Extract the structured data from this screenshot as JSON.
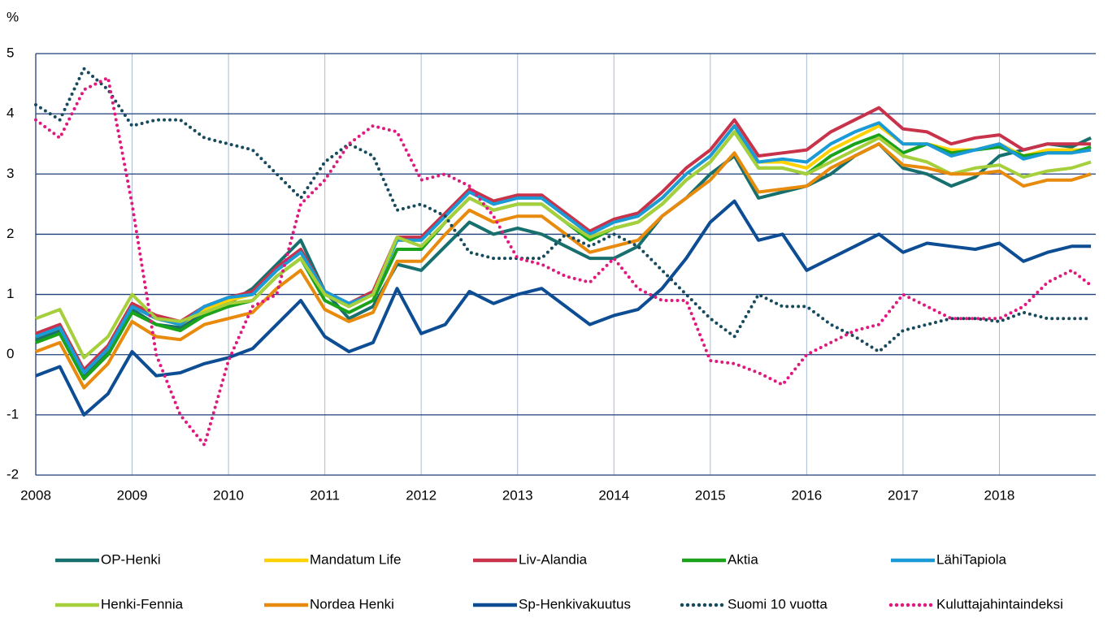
{
  "chart_data": {
    "type": "line",
    "y_label": "%",
    "x": [
      2008,
      2008.25,
      2008.5,
      2008.75,
      2009,
      2009.25,
      2009.5,
      2009.75,
      2010,
      2010.25,
      2010.5,
      2010.75,
      2011,
      2011.25,
      2011.5,
      2011.75,
      2012,
      2012.25,
      2012.5,
      2012.75,
      2013,
      2013.25,
      2013.5,
      2013.75,
      2014,
      2014.25,
      2014.5,
      2014.75,
      2015,
      2015.25,
      2015.5,
      2015.75,
      2016,
      2016.25,
      2016.5,
      2016.75,
      2017,
      2017.25,
      2017.5,
      2017.75,
      2018,
      2018.25,
      2018.5,
      2018.75,
      2018.95
    ],
    "xlim": [
      2008,
      2019
    ],
    "xticks": [
      2008,
      2009,
      2010,
      2011,
      2012,
      2013,
      2014,
      2015,
      2016,
      2017,
      2018
    ],
    "ylim": [
      -2,
      5
    ],
    "yticks": [
      -2,
      -1,
      0,
      1,
      2,
      3,
      4,
      5
    ],
    "grid": true,
    "series": [
      {
        "name": "OP-Henki",
        "color": "#17706e",
        "style": "solid",
        "values": [
          0.25,
          0.4,
          -0.35,
          0.05,
          0.75,
          0.5,
          0.45,
          0.7,
          0.85,
          1.1,
          1.5,
          1.9,
          1.05,
          0.6,
          0.8,
          1.5,
          1.4,
          1.8,
          2.2,
          2.0,
          2.1,
          2.0,
          1.8,
          1.6,
          1.6,
          1.8,
          2.3,
          2.6,
          3.0,
          3.3,
          2.6,
          2.7,
          2.8,
          3.0,
          3.3,
          3.5,
          3.1,
          3.0,
          2.8,
          2.95,
          3.3,
          3.4,
          3.5,
          3.45,
          3.6
        ]
      },
      {
        "name": "Mandatum Life",
        "color": "#ffd100",
        "style": "solid",
        "values": [
          0.3,
          0.45,
          -0.3,
          0.1,
          0.8,
          0.6,
          0.5,
          0.75,
          0.9,
          1.0,
          1.4,
          1.7,
          1.0,
          0.8,
          1.0,
          1.9,
          1.9,
          2.3,
          2.7,
          2.5,
          2.6,
          2.6,
          2.3,
          2.0,
          2.2,
          2.3,
          2.6,
          3.0,
          3.3,
          3.8,
          3.2,
          3.2,
          3.1,
          3.4,
          3.6,
          3.8,
          3.5,
          3.5,
          3.4,
          3.4,
          3.5,
          3.3,
          3.4,
          3.4,
          3.4
        ]
      },
      {
        "name": "Liv-Alandia",
        "color": "#c8324a",
        "style": "solid",
        "values": [
          0.35,
          0.5,
          -0.25,
          0.15,
          0.85,
          0.65,
          0.55,
          0.8,
          0.95,
          1.05,
          1.45,
          1.75,
          1.05,
          0.85,
          1.05,
          1.95,
          1.95,
          2.35,
          2.75,
          2.55,
          2.65,
          2.65,
          2.35,
          2.05,
          2.25,
          2.35,
          2.7,
          3.1,
          3.4,
          3.9,
          3.3,
          3.35,
          3.4,
          3.7,
          3.9,
          4.1,
          3.75,
          3.7,
          3.5,
          3.6,
          3.65,
          3.4,
          3.5,
          3.5,
          3.5
        ]
      },
      {
        "name": "Aktia",
        "color": "#1aa31a",
        "style": "solid",
        "values": [
          0.2,
          0.35,
          -0.4,
          0.0,
          0.7,
          0.5,
          0.4,
          0.65,
          0.8,
          0.9,
          1.3,
          1.6,
          0.9,
          0.7,
          0.9,
          1.75,
          1.75,
          2.2,
          2.6,
          2.4,
          2.5,
          2.5,
          2.2,
          1.9,
          2.1,
          2.2,
          2.5,
          2.9,
          3.2,
          3.7,
          3.1,
          3.1,
          3.0,
          3.3,
          3.5,
          3.65,
          3.35,
          3.5,
          3.35,
          3.4,
          3.45,
          3.3,
          3.35,
          3.35,
          3.45
        ]
      },
      {
        "name": "LähiTapiola",
        "color": "#1a9ad6",
        "style": "solid",
        "values": [
          0.3,
          0.45,
          -0.3,
          0.1,
          0.8,
          0.6,
          0.5,
          0.8,
          0.95,
          1.0,
          1.4,
          1.7,
          1.05,
          0.85,
          1.0,
          1.9,
          1.9,
          2.3,
          2.7,
          2.5,
          2.6,
          2.6,
          2.3,
          2.0,
          2.2,
          2.3,
          2.6,
          3.0,
          3.3,
          3.8,
          3.2,
          3.25,
          3.2,
          3.5,
          3.7,
          3.85,
          3.5,
          3.5,
          3.3,
          3.4,
          3.5,
          3.25,
          3.35,
          3.35,
          3.4
        ]
      },
      {
        "name": "Henki-Fennia",
        "color": "#a6cf3c",
        "style": "solid",
        "values": [
          0.6,
          0.75,
          -0.05,
          0.3,
          1.0,
          0.6,
          0.55,
          0.7,
          0.85,
          0.9,
          1.3,
          1.6,
          1.0,
          0.8,
          1.0,
          1.95,
          1.8,
          2.2,
          2.6,
          2.4,
          2.5,
          2.5,
          2.2,
          1.95,
          2.1,
          2.2,
          2.5,
          2.9,
          3.2,
          3.7,
          3.1,
          3.1,
          3.0,
          3.2,
          3.4,
          3.6,
          3.3,
          3.2,
          3.0,
          3.1,
          3.15,
          2.95,
          3.05,
          3.1,
          3.2
        ]
      },
      {
        "name": "Nordea Henki",
        "color": "#e88a0c",
        "style": "solid",
        "values": [
          0.05,
          0.2,
          -0.55,
          -0.15,
          0.55,
          0.3,
          0.25,
          0.5,
          0.6,
          0.7,
          1.1,
          1.4,
          0.75,
          0.55,
          0.7,
          1.55,
          1.55,
          2.0,
          2.4,
          2.2,
          2.3,
          2.3,
          2.0,
          1.7,
          1.8,
          1.9,
          2.3,
          2.6,
          2.9,
          3.35,
          2.7,
          2.75,
          2.8,
          3.1,
          3.3,
          3.5,
          3.15,
          3.1,
          3.0,
          3.0,
          3.05,
          2.8,
          2.9,
          2.9,
          3.0
        ]
      },
      {
        "name": "Sp-Henkivakuutus",
        "color": "#0d4d94",
        "style": "solid",
        "values": [
          -0.35,
          -0.2,
          -1.0,
          -0.65,
          0.05,
          -0.35,
          -0.3,
          -0.15,
          -0.05,
          0.1,
          0.5,
          0.9,
          0.3,
          0.05,
          0.2,
          1.1,
          0.35,
          0.5,
          1.05,
          0.85,
          1.0,
          1.1,
          0.8,
          0.5,
          0.65,
          0.75,
          1.1,
          1.6,
          2.2,
          2.55,
          1.9,
          2.0,
          1.4,
          1.6,
          1.8,
          2.0,
          1.7,
          1.85,
          1.8,
          1.75,
          1.85,
          1.55,
          1.7,
          1.8,
          1.8
        ]
      },
      {
        "name": "Suomi 10 vuotta",
        "color": "#174a5c",
        "style": "dotted",
        "values": [
          4.15,
          3.9,
          4.75,
          4.4,
          3.8,
          3.9,
          3.9,
          3.6,
          3.5,
          3.4,
          3.0,
          2.6,
          3.2,
          3.5,
          3.3,
          2.4,
          2.5,
          2.3,
          1.7,
          1.6,
          1.6,
          1.6,
          2.0,
          1.8,
          2.0,
          1.8,
          1.4,
          1.0,
          0.6,
          0.3,
          1.0,
          0.8,
          0.8,
          0.5,
          0.3,
          0.05,
          0.4,
          0.5,
          0.6,
          0.6,
          0.55,
          0.7,
          0.6,
          0.6,
          0.6
        ]
      },
      {
        "name": "Kuluttajahintaindeksi",
        "color": "#e0197e",
        "style": "dotted",
        "values": [
          3.9,
          3.6,
          4.4,
          4.6,
          2.5,
          0.0,
          -1.0,
          -1.5,
          -0.1,
          0.8,
          1.0,
          2.5,
          2.9,
          3.5,
          3.8,
          3.7,
          2.9,
          3.0,
          2.8,
          2.3,
          1.6,
          1.5,
          1.3,
          1.2,
          1.6,
          1.1,
          0.9,
          0.9,
          -0.1,
          -0.15,
          -0.3,
          -0.5,
          0.0,
          0.2,
          0.4,
          0.5,
          1.0,
          0.8,
          0.6,
          0.6,
          0.6,
          0.8,
          1.2,
          1.4,
          1.15
        ]
      }
    ]
  }
}
